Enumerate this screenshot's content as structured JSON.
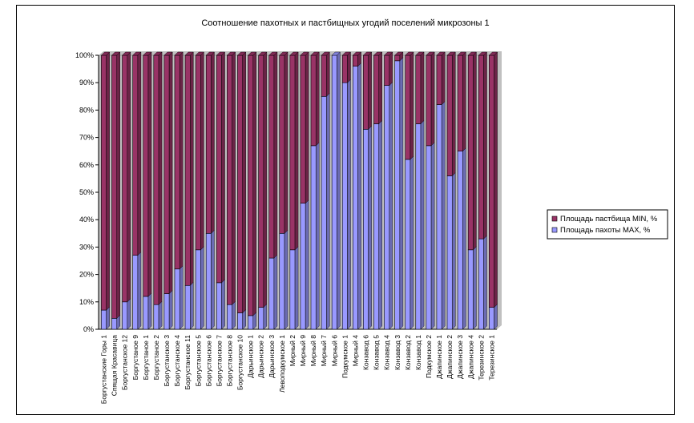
{
  "chart_data": {
    "type": "bar",
    "stacked": true,
    "percent_stacked": true,
    "title": "Соотношение пахотных и пастбищных угодий поселений микрозоны 1",
    "xlabel": "",
    "ylabel": "",
    "ylim": [
      0,
      100
    ],
    "y_ticks": [
      "0%",
      "10%",
      "20%",
      "30%",
      "40%",
      "50%",
      "60%",
      "70%",
      "80%",
      "90%",
      "100%"
    ],
    "grid": false,
    "legend_position": "right",
    "categories": [
      "Боргустанские Горы 1",
      "Спящая Красавица",
      "Боргустанское 12",
      "Боргустаное 9",
      "Боргустаное 1",
      "Боргустаное 2",
      "Боргустанское 3",
      "Боргустанское 4",
      "Боргустанское 11",
      "Боргустанское 5",
      "Боргустанское 6",
      "Боргустанское 7",
      "Боргустанское 8",
      "Боргустанское 10",
      "Дарьинское 1",
      "Дарьинское 2",
      "Дарьинское 3",
      "Левоподкумское 1",
      "Мирный 2",
      "Мирный 9",
      "Мирный 8",
      "Мирный 7",
      "Мирный 6",
      "Подкумское 1",
      "Мирный 4",
      "Конзавод 6",
      "Конзавод 5",
      "Конзавод 4",
      "Конзавод 3",
      "Конзавод 2",
      "Конзавод 1",
      "Подкумское 2",
      "Джапинское 1",
      "Джапинское 2",
      "Джапинское 3",
      "Джапинское 4",
      "Терезинское 2",
      "Терезинское 1"
    ],
    "series": [
      {
        "name": "Площадь пахоты MAX, %",
        "color": "#9999ff",
        "values": [
          7,
          4,
          10,
          27,
          12,
          9,
          13,
          22,
          16,
          29,
          35,
          17,
          9,
          6,
          5,
          8,
          26,
          35,
          29,
          46,
          67,
          85,
          100,
          90,
          96,
          73,
          75,
          89,
          98,
          62,
          75,
          67,
          82,
          56,
          65,
          29,
          33,
          8
        ]
      },
      {
        "name": "Площадь пастбища MIN, %",
        "color": "#993366",
        "values": [
          93,
          96,
          90,
          73,
          88,
          91,
          87,
          78,
          84,
          71,
          65,
          83,
          91,
          94,
          95,
          92,
          74,
          65,
          71,
          54,
          33,
          15,
          0,
          10,
          4,
          27,
          25,
          11,
          2,
          38,
          25,
          33,
          18,
          44,
          35,
          71,
          67,
          92
        ]
      }
    ],
    "legend": [
      "Площадь пастбища MIN, %",
      "Площадь пахоты MAX, %"
    ]
  }
}
